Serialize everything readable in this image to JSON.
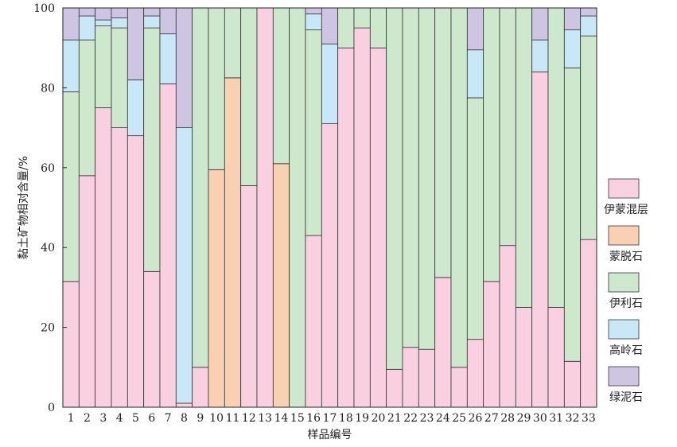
{
  "chart_data": {
    "type": "bar",
    "stacked": true,
    "xlabel": "样品编号",
    "ylabel": "黏土矿物相对含量/%",
    "ylim": [
      0,
      100
    ],
    "yticks": [
      0,
      20,
      40,
      60,
      80,
      100
    ],
    "legend_position": "right",
    "grid": false,
    "categories": [
      "1",
      "2",
      "3",
      "4",
      "5",
      "6",
      "7",
      "8",
      "9",
      "10",
      "11",
      "12",
      "13",
      "14",
      "15",
      "16",
      "17",
      "18",
      "19",
      "20",
      "21",
      "22",
      "23",
      "24",
      "25",
      "26",
      "27",
      "28",
      "29",
      "30",
      "31",
      "32",
      "33"
    ],
    "series": [
      {
        "name": "伊蒙混层",
        "color": "#f9d0e0",
        "values": [
          31.5,
          58,
          75,
          70,
          68,
          34,
          81,
          1,
          10,
          0,
          0,
          55.5,
          100,
          0,
          0,
          43,
          71,
          90,
          95,
          90,
          9.5,
          15,
          14.5,
          32.5,
          10,
          17,
          31.5,
          40.5,
          25,
          84,
          25,
          11.5,
          42
        ]
      },
      {
        "name": "蒙脱石",
        "color": "#fad0b3",
        "values": [
          0,
          0,
          0,
          0,
          0,
          0,
          0,
          0,
          0,
          59.5,
          82.5,
          0,
          0,
          61,
          0,
          0,
          0,
          0,
          0,
          0,
          0,
          0,
          0,
          0,
          0,
          0,
          0,
          0,
          0,
          0,
          0,
          0,
          0
        ]
      },
      {
        "name": "伊利石",
        "color": "#cde8cd",
        "values": [
          47.5,
          34,
          20.5,
          25,
          0,
          61,
          0,
          0,
          90,
          40.5,
          17.5,
          44.5,
          0,
          39,
          100,
          51.5,
          0,
          10,
          5,
          10,
          90.5,
          85,
          85.5,
          67.5,
          90,
          60.5,
          68.5,
          59.5,
          75,
          0,
          75,
          73.5,
          51
        ]
      },
      {
        "name": "高岭石",
        "color": "#c8e7f7",
        "values": [
          13,
          6,
          1.5,
          2.5,
          14,
          3,
          12.5,
          69,
          0,
          0,
          0,
          0,
          0,
          0,
          0,
          4,
          20,
          0,
          0,
          0,
          0,
          0,
          0,
          0,
          0,
          12,
          0,
          0,
          0,
          8,
          0,
          9.5,
          5
        ]
      },
      {
        "name": "绿泥石",
        "color": "#cec5e2",
        "values": [
          8,
          2,
          3,
          2.5,
          18,
          2,
          6.5,
          30,
          0,
          0,
          0,
          0,
          0,
          0,
          0,
          1.5,
          9,
          0,
          0,
          0,
          0,
          0,
          0,
          0,
          0,
          10.5,
          0,
          0,
          0,
          8,
          0,
          5.5,
          2
        ]
      }
    ]
  }
}
